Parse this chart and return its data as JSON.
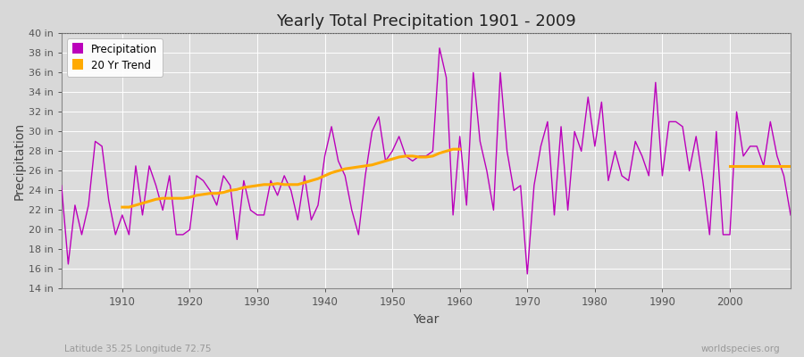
{
  "title": "Yearly Total Precipitation 1901 - 2009",
  "xlabel": "Year",
  "ylabel": "Precipitation",
  "ylim": [
    14,
    40
  ],
  "ytick_vals": [
    14,
    16,
    18,
    20,
    22,
    24,
    26,
    28,
    30,
    32,
    34,
    36,
    38,
    40
  ],
  "bg_color": "#d8d8d8",
  "plot_bg_color": "#dcdcdc",
  "precip_color": "#bb00bb",
  "trend_color": "#ffaa00",
  "grid_color": "#ffffff",
  "footnote_left": "Latitude 35.25 Longitude 72.75",
  "footnote_right": "worldspecies.org",
  "years": [
    1901,
    1902,
    1903,
    1904,
    1905,
    1906,
    1907,
    1908,
    1909,
    1910,
    1911,
    1912,
    1913,
    1914,
    1915,
    1916,
    1917,
    1918,
    1919,
    1920,
    1921,
    1922,
    1923,
    1924,
    1925,
    1926,
    1927,
    1928,
    1929,
    1930,
    1931,
    1932,
    1933,
    1934,
    1935,
    1936,
    1937,
    1938,
    1939,
    1940,
    1941,
    1942,
    1943,
    1944,
    1945,
    1946,
    1947,
    1948,
    1949,
    1950,
    1951,
    1952,
    1953,
    1954,
    1955,
    1956,
    1957,
    1958,
    1959,
    1960,
    1961,
    1962,
    1963,
    1964,
    1965,
    1966,
    1967,
    1968,
    1969,
    1970,
    1971,
    1972,
    1973,
    1974,
    1975,
    1976,
    1977,
    1978,
    1979,
    1980,
    1981,
    1982,
    1983,
    1984,
    1985,
    1986,
    1987,
    1988,
    1989,
    1990,
    1991,
    1992,
    1993,
    1994,
    1995,
    1996,
    1997,
    1998,
    1999,
    2000,
    2001,
    2002,
    2003,
    2004,
    2005,
    2006,
    2007,
    2008,
    2009
  ],
  "precip": [
    24.5,
    16.5,
    22.5,
    19.5,
    22.5,
    29.0,
    28.5,
    23.0,
    19.5,
    21.5,
    19.5,
    26.5,
    21.5,
    26.5,
    24.5,
    22.0,
    25.5,
    19.5,
    19.5,
    20.0,
    25.5,
    25.0,
    24.0,
    22.5,
    25.5,
    24.5,
    19.0,
    25.0,
    22.0,
    21.5,
    21.5,
    25.0,
    23.5,
    25.5,
    24.0,
    21.0,
    25.5,
    21.0,
    22.5,
    27.5,
    30.5,
    27.0,
    25.5,
    22.0,
    19.5,
    25.5,
    30.0,
    31.5,
    27.0,
    28.0,
    29.5,
    27.5,
    27.0,
    27.5,
    27.5,
    28.0,
    38.5,
    35.5,
    21.5,
    29.5,
    22.5,
    36.0,
    29.0,
    26.0,
    22.0,
    36.0,
    28.0,
    24.0,
    24.5,
    15.5,
    24.5,
    28.5,
    31.0,
    21.5,
    30.5,
    22.0,
    30.0,
    28.0,
    33.5,
    28.5,
    33.0,
    25.0,
    28.0,
    25.5,
    25.0,
    29.0,
    27.5,
    25.5,
    35.0,
    25.5,
    31.0,
    31.0,
    30.5,
    26.0,
    29.5,
    25.0,
    19.5,
    30.0,
    19.5,
    19.5,
    32.0,
    27.5,
    28.5,
    28.5,
    26.5,
    31.0,
    27.5,
    25.5,
    21.5
  ],
  "trend_seg1_years": [
    1910,
    1911,
    1912,
    1913,
    1914,
    1915,
    1916,
    1917,
    1918,
    1919,
    1920,
    1921,
    1922,
    1923,
    1924,
    1925,
    1926,
    1927,
    1928,
    1929,
    1930,
    1931,
    1932,
    1933,
    1934,
    1935,
    1936,
    1937,
    1938,
    1939,
    1940,
    1941,
    1942,
    1943,
    1944,
    1945,
    1946,
    1947,
    1948,
    1949,
    1950,
    1951,
    1952,
    1953,
    1954,
    1955,
    1956,
    1957,
    1958,
    1959,
    1960
  ],
  "trend_seg1_vals": [
    22.3,
    22.3,
    22.5,
    22.7,
    22.9,
    23.1,
    23.2,
    23.2,
    23.2,
    23.2,
    23.3,
    23.5,
    23.6,
    23.7,
    23.7,
    23.8,
    24.0,
    24.1,
    24.3,
    24.4,
    24.5,
    24.6,
    24.6,
    24.7,
    24.6,
    24.6,
    24.6,
    24.8,
    25.0,
    25.2,
    25.5,
    25.8,
    26.0,
    26.2,
    26.3,
    26.4,
    26.5,
    26.6,
    26.8,
    27.0,
    27.2,
    27.4,
    27.5,
    27.5,
    27.4,
    27.4,
    27.5,
    27.8,
    28.0,
    28.2,
    28.2
  ],
  "trend_seg2_years": [
    2000,
    2001,
    2002,
    2003,
    2004,
    2005,
    2006,
    2007,
    2008,
    2009
  ],
  "trend_seg2_vals": [
    26.5,
    26.5,
    26.5,
    26.5,
    26.5,
    26.5,
    26.5,
    26.5,
    26.5,
    26.5
  ]
}
